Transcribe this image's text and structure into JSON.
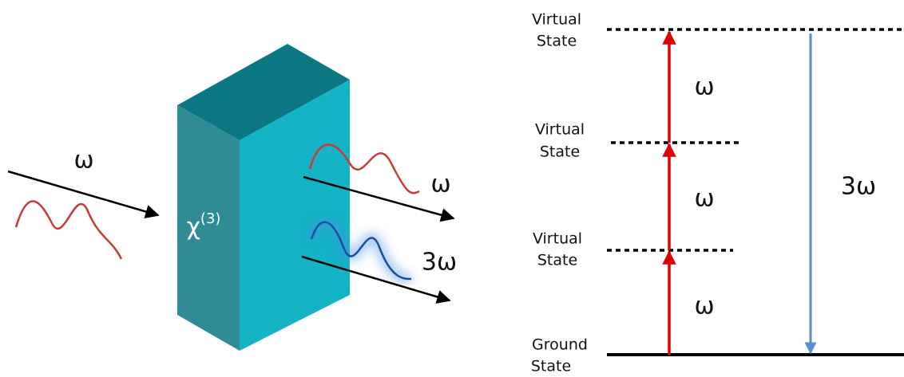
{
  "left_diagram": {
    "input_label": "ω",
    "crystal_label": {
      "base": "χ",
      "superscript": "(3)"
    },
    "output_labels": [
      "ω",
      "3ω"
    ]
  },
  "right_diagram": {
    "levels": [
      {
        "label_lines": [
          "Virtual",
          "State"
        ]
      },
      {
        "label_lines": [
          "Virtual",
          "State"
        ]
      },
      {
        "label_lines": [
          "Virtual",
          "State"
        ]
      },
      {
        "label_lines": [
          "Ground",
          "State"
        ]
      }
    ],
    "transition_labels": [
      "ω",
      "ω",
      "ω"
    ],
    "emission_label": "3ω"
  }
}
